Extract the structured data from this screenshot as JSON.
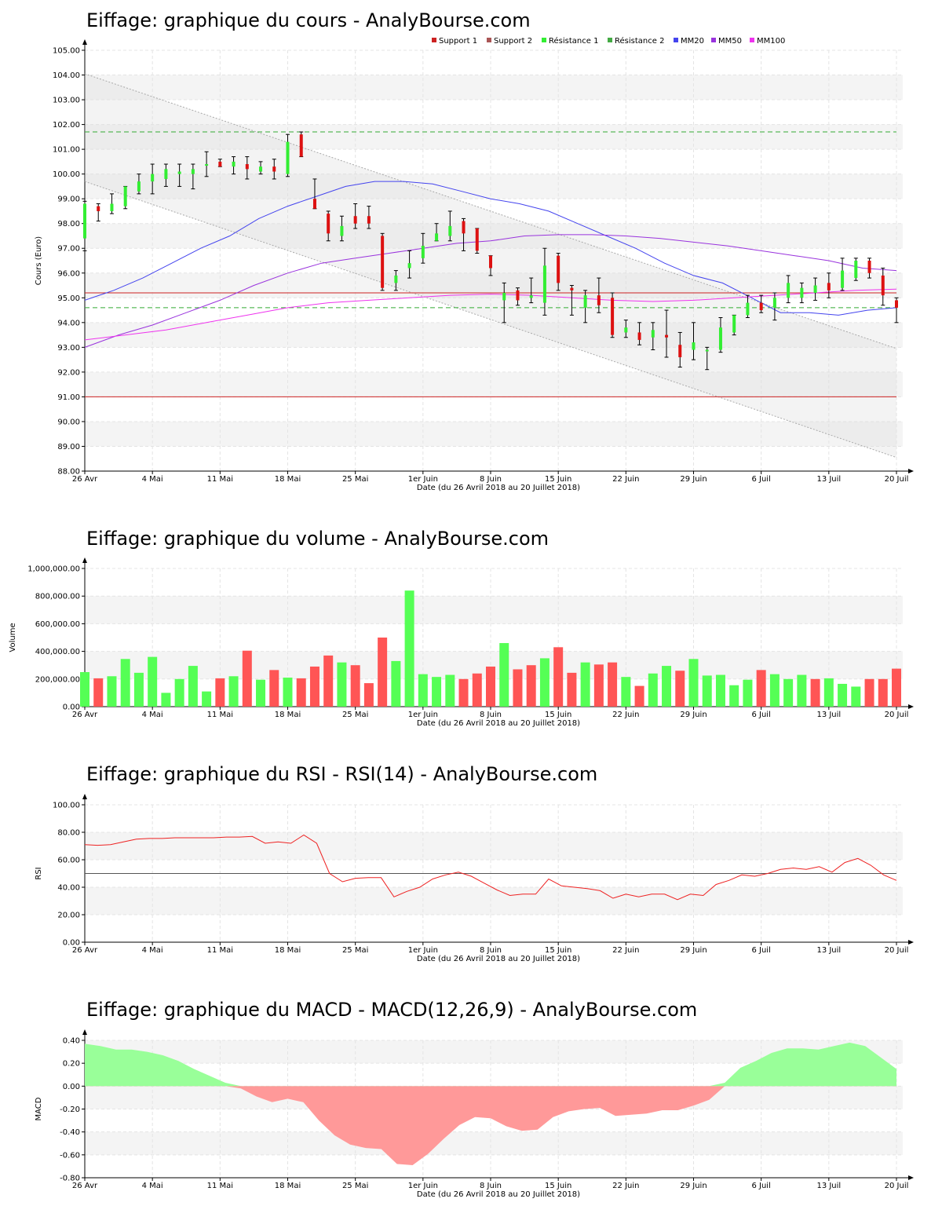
{
  "xaxis": {
    "ticks": [
      "26 Avr",
      "4 Mai",
      "11 Mai",
      "18 Mai",
      "25 Mai",
      "1er Juin",
      "8 Juin",
      "15 Juin",
      "22 Juin",
      "29 Juin",
      "6 Juil",
      "13 Juil",
      "20 Juil"
    ],
    "label": "Date (du 26 Avril 2018 au 20 Juillet 2018)"
  },
  "colors": {
    "up": "#55ff55",
    "down": "#ff5555",
    "up_candle": "#33ee33",
    "down_candle": "#dd1111",
    "mm20": "#4444ee",
    "mm50": "#9933dd",
    "mm100": "#ee33ee",
    "support": "#cc2222",
    "resistance": "#33aa33",
    "macd_pos": "#99ff99",
    "macd_neg": "#ff9999",
    "rsi": "#ee2222"
  },
  "charts": {
    "price": {
      "title": "Eiffage: graphique du cours - AnalyBourse.com",
      "ylabel": "Cours (Euro)",
      "ylim": [
        88,
        105
      ],
      "yticks": [
        "88.00",
        "89.00",
        "90.00",
        "91.00",
        "92.00",
        "93.00",
        "94.00",
        "95.00",
        "96.00",
        "97.00",
        "98.00",
        "99.00",
        "100.00",
        "101.00",
        "102.00",
        "103.00",
        "104.00",
        "105.00"
      ],
      "legend": [
        "Support 1",
        "Support 2",
        "Résistance 1",
        "Résistance 2",
        "MM20",
        "MM50",
        "MM100"
      ]
    },
    "volume": {
      "title": "Eiffage: graphique du volume - AnalyBourse.com",
      "ylabel": "Volume",
      "ylim": [
        0,
        1000000
      ],
      "yticks": [
        "0.00",
        "200,000.00",
        "400,000.00",
        "600,000.00",
        "800,000.00",
        "1,000,000.00"
      ]
    },
    "rsi": {
      "title": "Eiffage: graphique du RSI - RSI(14) - AnalyBourse.com",
      "ylabel": "RSI",
      "ylim": [
        0,
        100
      ],
      "yticks": [
        "0.00",
        "20.00",
        "40.00",
        "60.00",
        "80.00",
        "100.00"
      ]
    },
    "macd": {
      "title": "Eiffage: graphique du MACD - MACD(12,26,9) - AnalyBourse.com",
      "ylabel": "MACD",
      "ylim": [
        -0.8,
        0.4
      ],
      "yticks": [
        "-0.80",
        "-0.60",
        "-0.40",
        "-0.20",
        "0.00",
        "0.20",
        "0.40"
      ]
    }
  },
  "chart_data": [
    {
      "type": "candlestick",
      "title": "Eiffage: graphique du cours - AnalyBourse.com",
      "ylabel": "Cours (Euro)",
      "xlabel": "Date (du 26 Avril 2018 au 20 Juillet 2018)",
      "ylim": [
        88,
        105
      ],
      "candles": [
        [
          97.4,
          98.8,
          96.9,
          98.9
        ],
        [
          98.7,
          98.5,
          98.1,
          98.8
        ],
        [
          98.5,
          98.8,
          98.4,
          99.2
        ],
        [
          98.7,
          99.5,
          98.6,
          99.5
        ],
        [
          99.3,
          99.7,
          99.2,
          100.0
        ],
        [
          99.7,
          100.0,
          99.2,
          100.4
        ],
        [
          99.8,
          100.2,
          99.5,
          100.4
        ],
        [
          100.0,
          100.1,
          99.5,
          100.4
        ],
        [
          100.0,
          100.2,
          99.4,
          100.4
        ],
        [
          100.4,
          100.4,
          99.9,
          100.9
        ],
        [
          100.5,
          100.3,
          100.3,
          100.6
        ],
        [
          100.3,
          100.5,
          100.0,
          100.7
        ],
        [
          100.4,
          100.2,
          99.8,
          100.7
        ],
        [
          100.1,
          100.3,
          100.0,
          100.5
        ],
        [
          100.3,
          100.1,
          99.8,
          100.6
        ],
        [
          100.0,
          101.3,
          99.9,
          101.6
        ],
        [
          101.6,
          100.7,
          100.7,
          101.7
        ],
        [
          99.0,
          98.6,
          98.6,
          99.8
        ],
        [
          98.4,
          97.6,
          97.3,
          98.5
        ],
        [
          97.5,
          97.9,
          97.3,
          98.3
        ],
        [
          98.3,
          98.0,
          97.8,
          98.8
        ],
        [
          98.3,
          98.0,
          97.8,
          98.7
        ],
        [
          97.5,
          95.4,
          95.3,
          97.6
        ],
        [
          95.6,
          95.9,
          95.3,
          96.1
        ],
        [
          96.2,
          96.4,
          95.8,
          96.9
        ],
        [
          96.6,
          97.1,
          96.4,
          97.6
        ],
        [
          97.3,
          97.6,
          97.3,
          98.0
        ],
        [
          97.5,
          97.9,
          97.3,
          98.5
        ],
        [
          98.1,
          97.6,
          96.9,
          98.2
        ],
        [
          97.8,
          96.9,
          96.8,
          97.8
        ],
        [
          96.7,
          96.2,
          95.9,
          96.7
        ],
        [
          94.9,
          95.2,
          94.0,
          95.6
        ],
        [
          95.3,
          94.9,
          94.7,
          95.4
        ],
        [
          95.0,
          95.1,
          94.8,
          95.8
        ],
        [
          94.8,
          96.3,
          94.3,
          97.0
        ],
        [
          96.7,
          95.6,
          95.3,
          96.8
        ],
        [
          95.4,
          95.3,
          94.3,
          95.5
        ],
        [
          94.6,
          95.1,
          94.0,
          95.3
        ],
        [
          95.1,
          94.7,
          94.4,
          95.8
        ],
        [
          95.0,
          93.5,
          93.4,
          95.2
        ],
        [
          93.6,
          93.8,
          93.4,
          94.1
        ],
        [
          93.6,
          93.3,
          93.1,
          94.0
        ],
        [
          93.4,
          93.7,
          92.9,
          94.0
        ],
        [
          93.5,
          93.4,
          92.6,
          94.5
        ],
        [
          93.1,
          92.6,
          92.2,
          93.6
        ],
        [
          92.9,
          93.2,
          92.5,
          94.0
        ],
        [
          92.9,
          92.9,
          92.1,
          93.0
        ],
        [
          92.9,
          93.8,
          92.8,
          94.2
        ],
        [
          93.6,
          94.3,
          93.5,
          94.3
        ],
        [
          94.3,
          94.8,
          94.2,
          95.1
        ],
        [
          94.8,
          94.5,
          94.4,
          95.1
        ],
        [
          94.6,
          95.0,
          94.1,
          95.2
        ],
        [
          95.0,
          95.6,
          94.8,
          95.9
        ],
        [
          95.0,
          95.4,
          94.8,
          95.6
        ],
        [
          95.2,
          95.5,
          94.9,
          95.8
        ],
        [
          95.6,
          95.3,
          95.0,
          96.0
        ],
        [
          95.4,
          96.1,
          95.3,
          96.6
        ],
        [
          95.8,
          96.5,
          95.7,
          96.6
        ],
        [
          96.5,
          96.0,
          95.8,
          96.6
        ],
        [
          95.9,
          95.1,
          94.7,
          96.2
        ],
        [
          94.9,
          94.6,
          94.0,
          95.0
        ]
      ],
      "series": [
        {
          "name": "MM20",
          "values": [
            94.9,
            95.3,
            95.8,
            96.4,
            97.0,
            97.5,
            98.2,
            98.7,
            99.1,
            99.5,
            99.7,
            99.7,
            99.6,
            99.3,
            99.0,
            98.8,
            98.5,
            98.0,
            97.5,
            97.0,
            96.4,
            95.9,
            95.6,
            95.0,
            94.4,
            94.4,
            94.3,
            94.5,
            94.6
          ]
        },
        {
          "name": "MM50",
          "values": [
            93.0,
            93.5,
            93.9,
            94.4,
            94.9,
            95.5,
            96.0,
            96.4,
            96.6,
            96.8,
            97.0,
            97.2,
            97.3,
            97.5,
            97.55,
            97.55,
            97.5,
            97.4,
            97.25,
            97.1,
            96.9,
            96.7,
            96.5,
            96.2,
            96.1
          ]
        },
        {
          "name": "MM100",
          "values": [
            93.3,
            93.5,
            93.7,
            94.0,
            94.3,
            94.6,
            94.8,
            94.9,
            95.0,
            95.1,
            95.15,
            95.1,
            95.0,
            94.9,
            94.85,
            94.9,
            95.0,
            95.1,
            95.2,
            95.3,
            95.35
          ]
        }
      ],
      "levels": {
        "Support 1": 95.2,
        "Support 2": 91.0,
        "Résistance 1": 101.7,
        "Résistance 2": 94.6
      },
      "legend": [
        "Support 1",
        "Support 2",
        "Résistance 1",
        "Résistance 2",
        "MM20",
        "MM50",
        "MM100"
      ]
    },
    {
      "type": "bar",
      "title": "Eiffage: graphique du volume - AnalyBourse.com",
      "ylabel": "Volume",
      "ylim": [
        0,
        1000000
      ],
      "values": [
        250000,
        205000,
        220000,
        345000,
        245000,
        360000,
        100000,
        200000,
        295000,
        110000,
        205000,
        220000,
        405000,
        195000,
        265000,
        210000,
        205000,
        290000,
        370000,
        320000,
        300000,
        170000,
        500000,
        330000,
        840000,
        235000,
        215000,
        230000,
        200000,
        240000,
        290000,
        460000,
        270000,
        300000,
        350000,
        430000,
        245000,
        320000,
        305000,
        320000,
        215000,
        150000,
        240000,
        295000,
        260000,
        345000,
        225000,
        230000,
        155000,
        195000,
        265000,
        235000,
        200000,
        230000,
        200000,
        205000,
        165000,
        145000,
        200000,
        200000,
        275000
      ],
      "up": [
        1,
        0,
        1,
        1,
        1,
        1,
        1,
        1,
        1,
        1,
        0,
        1,
        0,
        1,
        0,
        1,
        0,
        0,
        0,
        1,
        0,
        0,
        0,
        1,
        1,
        1,
        1,
        1,
        0,
        0,
        0,
        1,
        0,
        0,
        1,
        0,
        0,
        1,
        0,
        0,
        1,
        0,
        1,
        1,
        0,
        1,
        1,
        1,
        1,
        1,
        0,
        1,
        1,
        1,
        0,
        1,
        1,
        1,
        0,
        0,
        0
      ]
    },
    {
      "type": "line",
      "title": "Eiffage: graphique du RSI - RSI(14) - AnalyBourse.com",
      "ylabel": "RSI",
      "ylim": [
        0,
        100
      ],
      "reference_line": 50,
      "values": [
        71,
        70.5,
        71,
        73,
        75,
        75.5,
        75.5,
        76,
        76,
        76,
        76,
        76.5,
        76.5,
        77,
        72,
        73,
        72,
        78,
        72,
        50,
        44,
        46.5,
        47,
        47,
        33,
        37,
        40,
        46,
        49,
        51,
        48,
        43,
        38,
        34,
        35,
        35,
        46,
        41,
        40,
        39,
        37.5,
        32,
        35,
        33,
        35,
        35,
        31,
        35,
        34,
        42,
        45,
        49,
        48,
        50,
        53,
        54,
        53,
        55,
        51,
        58,
        61,
        56,
        49,
        45
      ]
    },
    {
      "type": "area",
      "title": "Eiffage: graphique du MACD - MACD(12,26,9) - AnalyBourse.com",
      "ylabel": "MACD",
      "ylim": [
        -0.8,
        0.4
      ],
      "values": [
        0.37,
        0.35,
        0.32,
        0.32,
        0.3,
        0.27,
        0.22,
        0.15,
        0.09,
        0.03,
        -0.02,
        -0.09,
        -0.14,
        -0.11,
        -0.14,
        -0.3,
        -0.43,
        -0.51,
        -0.54,
        -0.55,
        -0.68,
        -0.69,
        -0.59,
        -0.46,
        -0.34,
        -0.27,
        -0.28,
        -0.35,
        -0.39,
        -0.38,
        -0.27,
        -0.22,
        -0.2,
        -0.19,
        -0.26,
        -0.25,
        -0.24,
        -0.21,
        -0.21,
        -0.17,
        -0.12,
        0.03,
        0.16,
        0.22,
        0.29,
        0.33,
        0.33,
        0.32,
        0.35,
        0.38,
        0.35,
        0.25,
        0.15
      ]
    }
  ]
}
